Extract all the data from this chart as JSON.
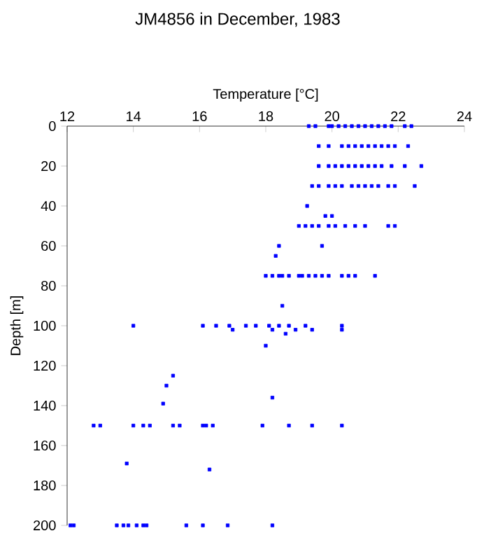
{
  "chart_data": {
    "type": "scatter",
    "title": "JM4856 in December, 1983",
    "xlabel": "Temperature [°C]",
    "ylabel": "Depth [m]",
    "xlim": [
      12,
      24
    ],
    "xticks": [
      12,
      14,
      16,
      18,
      20,
      22,
      24
    ],
    "ylim": [
      200,
      0
    ],
    "yticks": [
      0,
      20,
      40,
      60,
      80,
      100,
      120,
      140,
      160,
      180,
      200
    ],
    "grid": false,
    "legend": false,
    "marker": "square",
    "series": [
      {
        "color": "#0000ff",
        "x": [
          19.3,
          19.5,
          19.9,
          20.0,
          20.2,
          20.4,
          20.6,
          20.8,
          21.0,
          21.2,
          21.4,
          21.6,
          21.8,
          22.2,
          22.4,
          19.6,
          19.9,
          20.3,
          20.5,
          20.7,
          20.9,
          21.1,
          21.3,
          21.5,
          21.7,
          21.9,
          22.3,
          19.6,
          19.9,
          20.1,
          20.3,
          20.5,
          20.7,
          20.9,
          21.1,
          21.3,
          21.5,
          21.8,
          22.2,
          22.7,
          19.4,
          19.6,
          19.9,
          20.1,
          20.3,
          20.6,
          20.8,
          21.0,
          21.2,
          21.4,
          21.7,
          21.9,
          22.5,
          19.25,
          19.8,
          20.0,
          19.0,
          19.2,
          19.4,
          19.6,
          19.9,
          20.1,
          20.4,
          20.7,
          21.0,
          21.7,
          21.9,
          18.4,
          19.7,
          18.3,
          18.0,
          18.2,
          18.4,
          18.5,
          18.7,
          19.0,
          19.1,
          19.3,
          19.5,
          19.7,
          19.9,
          20.3,
          20.5,
          20.7,
          21.3,
          18.5,
          14.0,
          16.1,
          16.5,
          16.9,
          17.4,
          17.7,
          18.1,
          18.4,
          18.7,
          19.2,
          20.3,
          17.0,
          18.2,
          18.9,
          19.4,
          20.3,
          18.6,
          18.0,
          15.2,
          15.0,
          14.9,
          18.2,
          12.8,
          13.0,
          14.0,
          14.3,
          14.5,
          15.2,
          15.4,
          16.1,
          16.2,
          16.4,
          17.9,
          18.7,
          19.4,
          20.3,
          13.8,
          16.3,
          12.1,
          12.2,
          13.5,
          13.7,
          13.85,
          14.1,
          14.3,
          14.4,
          15.6,
          16.1,
          16.85,
          18.2
        ],
        "values": [
          0,
          0,
          0,
          0,
          0,
          0,
          0,
          0,
          0,
          0,
          0,
          0,
          0,
          0,
          0,
          10,
          10,
          10,
          10,
          10,
          10,
          10,
          10,
          10,
          10,
          10,
          10,
          20,
          20,
          20,
          20,
          20,
          20,
          20,
          20,
          20,
          20,
          20,
          20,
          20,
          30,
          30,
          30,
          30,
          30,
          30,
          30,
          30,
          30,
          30,
          30,
          30,
          30,
          40,
          45,
          45,
          50,
          50,
          50,
          50,
          50,
          50,
          50,
          50,
          50,
          50,
          50,
          60,
          60,
          65,
          75,
          75,
          75,
          75,
          75,
          75,
          75,
          75,
          75,
          75,
          75,
          75,
          75,
          75,
          75,
          90,
          100,
          100,
          100,
          100,
          100,
          100,
          100,
          100,
          100,
          100,
          100,
          102,
          102,
          102,
          102,
          102,
          104,
          110,
          125,
          130,
          139,
          136,
          150,
          150,
          150,
          150,
          150,
          150,
          150,
          150,
          150,
          150,
          150,
          150,
          150,
          150,
          169,
          172,
          200,
          200,
          200,
          200,
          200,
          200,
          200,
          200,
          200,
          200,
          200,
          200
        ]
      }
    ]
  }
}
